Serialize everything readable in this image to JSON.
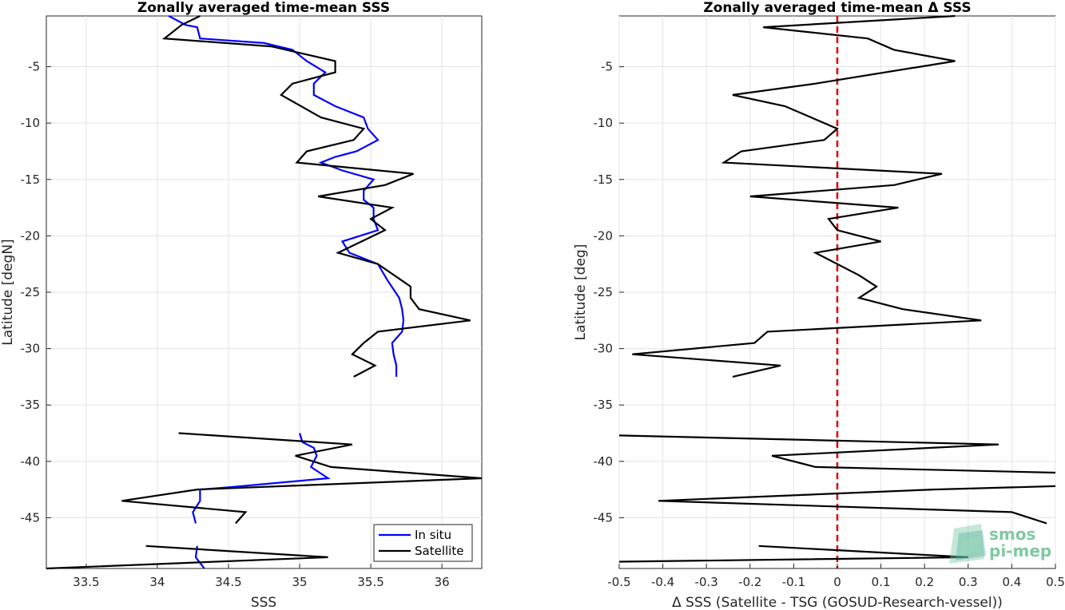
{
  "chart_data": [
    {
      "type": "line",
      "title": "Zonally averaged time-mean SSS",
      "xlabel": "SSS",
      "ylabel": "Latitude [degN]",
      "xlim": [
        33.22,
        36.28
      ],
      "ylim": [
        -49.5,
        -0.5
      ],
      "xticks": [
        33.5,
        34,
        34.5,
        35,
        35.5,
        36
      ],
      "xtick_labels": [
        "33.5",
        "34",
        "34.5",
        "35",
        "35.5",
        "36"
      ],
      "yticks": [
        -5,
        -10,
        -15,
        -20,
        -25,
        -30,
        -35,
        -40,
        -45
      ],
      "ytick_labels": [
        "-5",
        "-10",
        "-15",
        "-20",
        "-25",
        "-30",
        "-35",
        "-40",
        "-45"
      ],
      "grid": true,
      "legend_position": "bottom-right",
      "series": [
        {
          "name": "In situ",
          "color": "#0000ff",
          "segments": [
            [
              {
                "x": 34.08,
                "y": -0.5
              },
              {
                "x": 34.2,
                "y": -1.3
              },
              {
                "x": 34.28,
                "y": -1.5
              },
              {
                "x": 34.3,
                "y": -2.5
              },
              {
                "x": 34.75,
                "y": -2.9
              },
              {
                "x": 34.95,
                "y": -3.5
              },
              {
                "x": 35.05,
                "y": -4.5
              },
              {
                "x": 35.18,
                "y": -5.5
              },
              {
                "x": 35.1,
                "y": -6.5
              },
              {
                "x": 35.1,
                "y": -7.5
              },
              {
                "x": 35.25,
                "y": -8.5
              },
              {
                "x": 35.45,
                "y": -9.5
              },
              {
                "x": 35.48,
                "y": -10.5
              },
              {
                "x": 35.55,
                "y": -11.5
              },
              {
                "x": 35.4,
                "y": -12.5
              },
              {
                "x": 35.25,
                "y": -13.0
              },
              {
                "x": 35.15,
                "y": -13.5
              },
              {
                "x": 35.3,
                "y": -14.2
              },
              {
                "x": 35.52,
                "y": -15.0
              },
              {
                "x": 35.45,
                "y": -16.0
              },
              {
                "x": 35.45,
                "y": -16.8
              },
              {
                "x": 35.52,
                "y": -17.5
              },
              {
                "x": 35.52,
                "y": -18.5
              },
              {
                "x": 35.55,
                "y": -19.5
              },
              {
                "x": 35.3,
                "y": -20.5
              },
              {
                "x": 35.35,
                "y": -21.5
              },
              {
                "x": 35.55,
                "y": -22.5
              },
              {
                "x": 35.62,
                "y": -24.0
              },
              {
                "x": 35.7,
                "y": -25.5
              },
              {
                "x": 35.72,
                "y": -26.5
              },
              {
                "x": 35.73,
                "y": -27.5
              },
              {
                "x": 35.72,
                "y": -28.5
              },
              {
                "x": 35.65,
                "y": -29.5
              },
              {
                "x": 35.66,
                "y": -30.5
              },
              {
                "x": 35.68,
                "y": -31.5
              },
              {
                "x": 35.68,
                "y": -32.5
              }
            ],
            [
              {
                "x": 35.0,
                "y": -37.5
              },
              {
                "x": 35.02,
                "y": -38.3
              },
              {
                "x": 35.1,
                "y": -38.8
              },
              {
                "x": 35.12,
                "y": -39.5
              },
              {
                "x": 35.08,
                "y": -40.5
              },
              {
                "x": 35.2,
                "y": -41.5
              },
              {
                "x": 34.5,
                "y": -42.3
              },
              {
                "x": 34.3,
                "y": -42.5
              },
              {
                "x": 34.3,
                "y": -43.5
              },
              {
                "x": 34.25,
                "y": -44.5
              },
              {
                "x": 34.27,
                "y": -45.5
              }
            ],
            [
              {
                "x": 34.28,
                "y": -47.5
              },
              {
                "x": 34.27,
                "y": -48.5
              },
              {
                "x": 34.33,
                "y": -49.5
              }
            ]
          ]
        },
        {
          "name": "Satellite",
          "color": "#000000",
          "segments": [
            [
              {
                "x": 34.3,
                "y": -0.5
              },
              {
                "x": 34.17,
                "y": -1.3
              },
              {
                "x": 34.05,
                "y": -2.5
              },
              {
                "x": 34.8,
                "y": -3.2
              },
              {
                "x": 35.25,
                "y": -4.5
              },
              {
                "x": 35.25,
                "y": -5.5
              },
              {
                "x": 34.95,
                "y": -6.5
              },
              {
                "x": 34.87,
                "y": -7.5
              },
              {
                "x": 35.15,
                "y": -9.5
              },
              {
                "x": 35.45,
                "y": -10.5
              },
              {
                "x": 35.38,
                "y": -11.5
              },
              {
                "x": 35.05,
                "y": -12.5
              },
              {
                "x": 34.98,
                "y": -13.5
              },
              {
                "x": 35.8,
                "y": -14.5
              },
              {
                "x": 35.6,
                "y": -15.5
              },
              {
                "x": 35.13,
                "y": -16.5
              },
              {
                "x": 35.65,
                "y": -17.5
              },
              {
                "x": 35.5,
                "y": -18.5
              },
              {
                "x": 35.6,
                "y": -19.5
              },
              {
                "x": 35.27,
                "y": -21.5
              },
              {
                "x": 35.55,
                "y": -22.5
              },
              {
                "x": 35.78,
                "y": -24.5
              },
              {
                "x": 35.78,
                "y": -25.5
              },
              {
                "x": 35.84,
                "y": -26.5
              },
              {
                "x": 36.2,
                "y": -27.5
              },
              {
                "x": 35.55,
                "y": -28.5
              },
              {
                "x": 35.45,
                "y": -29.5
              },
              {
                "x": 35.37,
                "y": -30.5
              },
              {
                "x": 35.53,
                "y": -31.5
              },
              {
                "x": 35.38,
                "y": -32.5
              }
            ],
            [
              {
                "x": 34.15,
                "y": -37.5
              },
              {
                "x": 35.37,
                "y": -38.5
              },
              {
                "x": 34.97,
                "y": -39.5
              },
              {
                "x": 35.22,
                "y": -40.5
              },
              {
                "x": 36.28,
                "y": -41.5
              },
              {
                "x": 34.28,
                "y": -42.5
              },
              {
                "x": 33.75,
                "y": -43.5
              },
              {
                "x": 34.62,
                "y": -44.5
              },
              {
                "x": 34.55,
                "y": -45.5
              }
            ],
            [
              {
                "x": 33.92,
                "y": -47.5
              },
              {
                "x": 35.2,
                "y": -48.5
              },
              {
                "x": 33.22,
                "y": -49.5
              }
            ]
          ]
        }
      ]
    },
    {
      "type": "line",
      "title": "Zonally averaged time-mean Δ SSS",
      "xlabel": "Δ SSS (Satellite - TSG (GOSUD-Research-vessel))",
      "ylabel": "Latitude [deg]",
      "xlim": [
        -0.5,
        0.5
      ],
      "ylim": [
        -49.5,
        -0.5
      ],
      "xticks": [
        -0.5,
        -0.4,
        -0.3,
        -0.2,
        -0.1,
        0,
        0.1,
        0.2,
        0.3,
        0.4,
        0.5
      ],
      "xtick_labels": [
        "-0.5",
        "-0.4",
        "-0.3",
        "-0.2",
        "-0.1",
        "0",
        "0.1",
        "0.2",
        "0.3",
        "0.4",
        "0.5"
      ],
      "yticks": [
        -5,
        -10,
        -15,
        -20,
        -25,
        -30,
        -35,
        -40,
        -45
      ],
      "ytick_labels": [
        "-5",
        "-10",
        "-15",
        "-20",
        "-25",
        "-30",
        "-35",
        "-40",
        "-45"
      ],
      "grid": true,
      "reference_line": {
        "x": 0,
        "color": "#e00000",
        "style": "dashed"
      },
      "series": [
        {
          "color": "#000000",
          "segments": [
            [
              {
                "x": 0.27,
                "y": -0.5
              },
              {
                "x": -0.17,
                "y": -1.5
              },
              {
                "x": 0.07,
                "y": -2.5
              },
              {
                "x": 0.13,
                "y": -3.5
              },
              {
                "x": 0.27,
                "y": -4.5
              },
              {
                "x": -0.05,
                "y": -6.5
              },
              {
                "x": -0.24,
                "y": -7.5
              },
              {
                "x": -0.12,
                "y": -8.5
              },
              {
                "x": 0.0,
                "y": -10.5
              },
              {
                "x": -0.03,
                "y": -11.5
              },
              {
                "x": -0.22,
                "y": -12.5
              },
              {
                "x": -0.26,
                "y": -13.5
              },
              {
                "x": 0.24,
                "y": -14.5
              },
              {
                "x": 0.13,
                "y": -15.5
              },
              {
                "x": -0.2,
                "y": -16.5
              },
              {
                "x": 0.14,
                "y": -17.5
              },
              {
                "x": -0.02,
                "y": -18.5
              },
              {
                "x": 0.0,
                "y": -19.5
              },
              {
                "x": 0.1,
                "y": -20.5
              },
              {
                "x": -0.05,
                "y": -21.5
              },
              {
                "x": 0.05,
                "y": -23.5
              },
              {
                "x": 0.09,
                "y": -24.5
              },
              {
                "x": 0.05,
                "y": -25.5
              },
              {
                "x": 0.15,
                "y": -26.5
              },
              {
                "x": 0.33,
                "y": -27.5
              },
              {
                "x": -0.16,
                "y": -28.5
              },
              {
                "x": -0.19,
                "y": -29.5
              },
              {
                "x": -0.47,
                "y": -30.5
              },
              {
                "x": -0.13,
                "y": -31.5
              },
              {
                "x": -0.24,
                "y": -32.5
              }
            ],
            [
              {
                "x": -0.5,
                "y": -37.7
              },
              {
                "x": 0.37,
                "y": -38.5
              },
              {
                "x": -0.15,
                "y": -39.5
              },
              {
                "x": -0.05,
                "y": -40.5
              },
              {
                "x": 0.5,
                "y": -41.0
              }
            ],
            [
              {
                "x": 0.5,
                "y": -42.2
              },
              {
                "x": 0.22,
                "y": -42.5
              },
              {
                "x": -0.41,
                "y": -43.5
              },
              {
                "x": 0.4,
                "y": -44.5
              },
              {
                "x": 0.48,
                "y": -45.5
              }
            ],
            [
              {
                "x": -0.18,
                "y": -47.5
              },
              {
                "x": 0.3,
                "y": -48.5
              },
              {
                "x": -0.5,
                "y": -48.9
              }
            ]
          ]
        }
      ]
    }
  ],
  "legend": {
    "items": [
      {
        "label": "In situ",
        "color": "#0000ff"
      },
      {
        "label": "Satellite",
        "color": "#000000"
      }
    ]
  },
  "logo": {
    "line1": "smos",
    "line2": "pi-mep",
    "color": "#7fc9a2"
  }
}
